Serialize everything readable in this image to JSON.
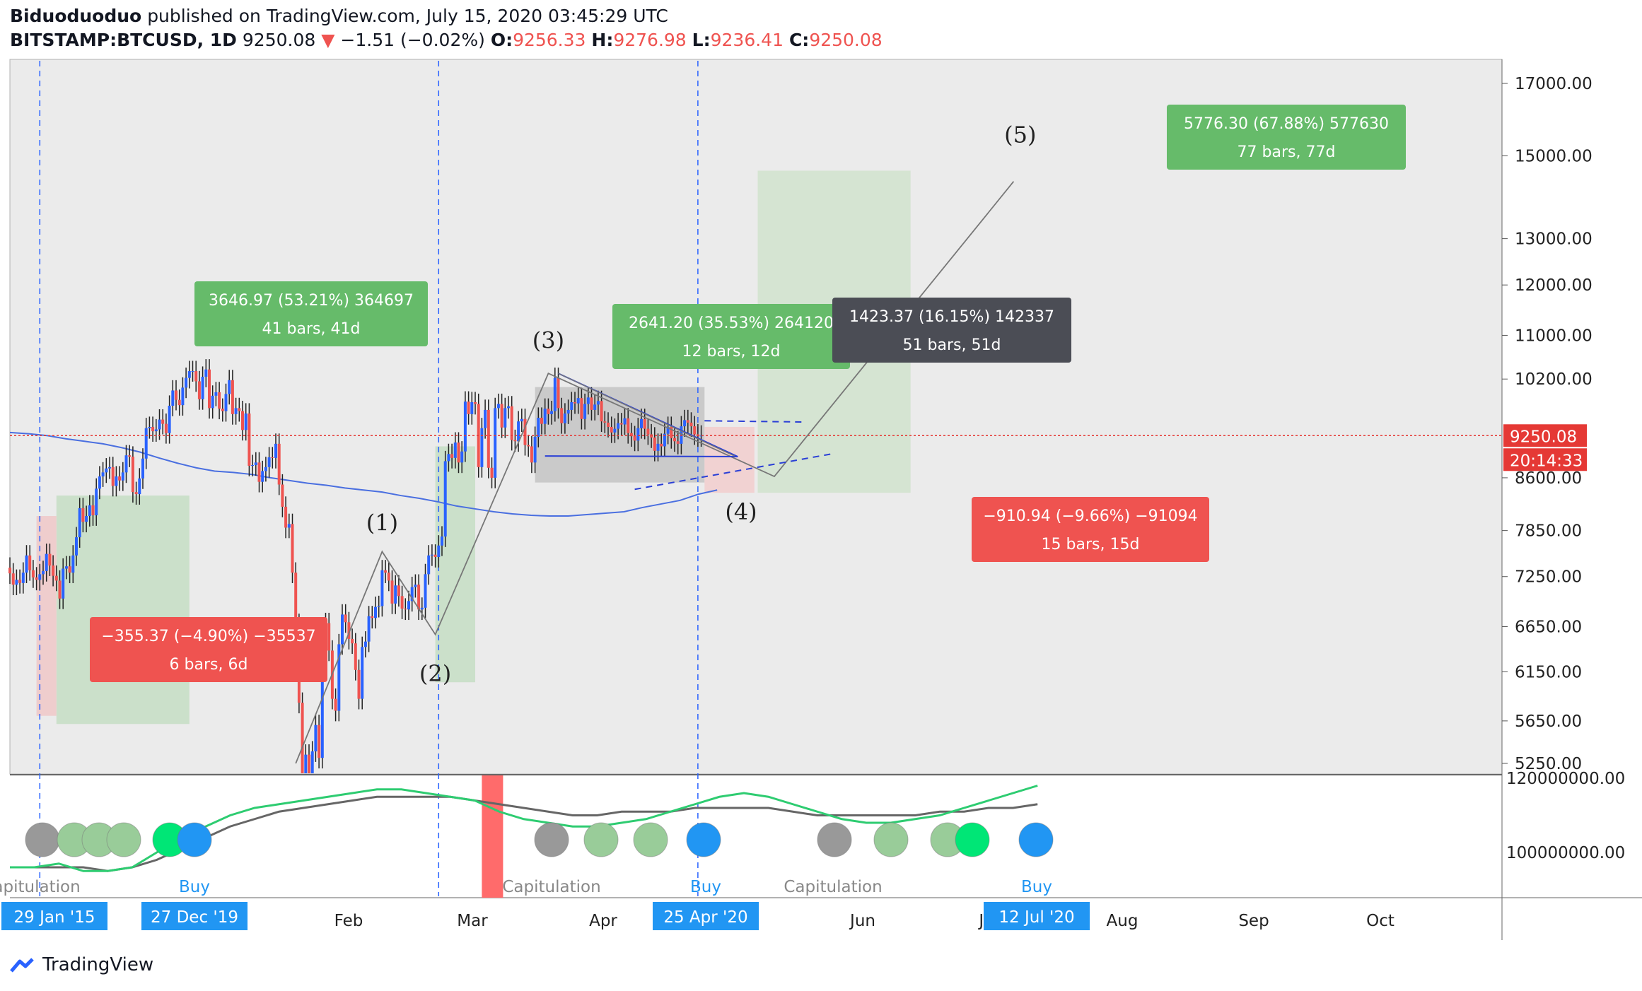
{
  "header": {
    "author": "Biduoduoduo",
    "published_text": "published on TradingView.com, July 15, 2020 03:45:29 UTC",
    "symbol": "BITSTAMP:BTCUSD, 1D",
    "last": "9250.08",
    "arrow": "▼",
    "change": "−1.51 (−0.02%)",
    "o_label": "O:",
    "o": "9256.33",
    "h_label": "H:",
    "h": "9276.98",
    "l_label": "L:",
    "l": "9236.41",
    "c_label": "C:",
    "c": "9250.08"
  },
  "footer": {
    "brand": "TradingView",
    "icon": "tradingview-logo-icon"
  },
  "colors": {
    "up": "#2962ff",
    "down": "#ef5350",
    "bg": "#ebebeb",
    "ma": "#4a6fe0",
    "green_box": "#66bb6a",
    "red_box": "#ef5350",
    "gray_box": "#4b4d55"
  },
  "chart_data": {
    "type": "candlestick",
    "scale": "log",
    "y_ticks": [
      "17000.00",
      "15000.00",
      "13000.00",
      "12000.00",
      "11000.00",
      "10200.00",
      "8600.00",
      "7850.00",
      "7250.00",
      "6650.00",
      "6150.00",
      "5650.00",
      "5250.00"
    ],
    "x_labels": [
      "29 Jan '15",
      "27 Dec '19",
      "Feb",
      "Mar",
      "Apr",
      "25 Apr '20",
      "Jun",
      "Ju",
      "12 Jul '20",
      "Aug",
      "Sep",
      "Oct"
    ],
    "price_label": "9250.08",
    "countdown_label": "20:14:33",
    "series": [
      {
        "start_date": "2019-12-18",
        "closes": [
          7290,
          7150,
          7210,
          7170,
          7300,
          7520,
          7330,
          7240,
          7210,
          7280,
          7320,
          7540,
          7390,
          7260,
          7200,
          6980,
          7350,
          7380,
          7300,
          7520,
          7760,
          8160,
          7970,
          8050,
          8200,
          8060,
          8440,
          8620,
          8680,
          8740,
          8760,
          8480,
          8620,
          8560,
          8680,
          8940,
          8920,
          8390,
          8360,
          8590,
          8890,
          9370,
          9390,
          9320,
          9350,
          9510,
          9440,
          9290,
          9740,
          10000,
          9840,
          9750,
          10050,
          10220,
          10340,
          10340,
          10160,
          9850,
          10240,
          10370,
          9700,
          9910,
          9970,
          9690,
          9650,
          9940,
          10180,
          9600,
          9700,
          9650,
          9340,
          9610,
          8780,
          8790,
          8830,
          8540,
          8700,
          8760,
          8910,
          8900,
          9120,
          8500,
          8180,
          7890,
          7940,
          7300,
          6680,
          5830,
          5010,
          5330,
          5150,
          5360,
          5610,
          5300,
          6160,
          6690,
          6380,
          5870,
          5750,
          6450,
          6790,
          6700,
          6510,
          6460,
          6170,
          5870,
          6420,
          6480,
          6770,
          6750,
          6880,
          6890,
          7330,
          7300,
          7200,
          6920,
          7140,
          7010,
          6860,
          6850,
          6950,
          7120,
          7150,
          6850,
          6870,
          7280,
          7520,
          7530,
          7500,
          7650,
          7770,
          8850,
          8960,
          8900,
          9140,
          8830,
          9000,
          9810,
          9600,
          9800,
          9770,
          8760,
          9370,
          9670,
          8750,
          8600,
          9700,
          9770,
          9380,
          9700,
          9730,
          9180,
          9160,
          9480,
          9520,
          9100,
          9080,
          8830,
          9230,
          9540,
          9440,
          9690,
          9600,
          9650,
          10220,
          9700,
          9450,
          9610,
          9670,
          9800,
          9780,
          9870,
          9520,
          9770,
          9880,
          9670,
          9760,
          9820,
          9480,
          9460,
          9390,
          9300,
          9360,
          9450,
          9430,
          9530,
          9290,
          9240,
          9170,
          9370,
          9520,
          9360,
          9270,
          9220,
          9010,
          9120,
          9080,
          9280,
          9390,
          9210,
          9160,
          9120,
          9400,
          9500,
          9460,
          9400,
          9270,
          9240,
          9250
        ]
      },
      {
        "name": "MA",
        "values": [
          9300,
          9280,
          9250,
          9200,
          9160,
          9120,
          9060,
          8990,
          8900,
          8820,
          8750,
          8700,
          8680,
          8650,
          8600,
          8560,
          8520,
          8490,
          8450,
          8420,
          8390,
          8340,
          8300,
          8250,
          8190,
          8150,
          8110,
          8080,
          8060,
          8050,
          8050,
          8070,
          8090,
          8110,
          8170,
          8220,
          8270,
          8360,
          8420
        ]
      }
    ],
    "annotations": [
      {
        "id": "m1",
        "l1": "3646.97 (53.21%) 364697",
        "l2": "41 bars, 41d"
      },
      {
        "id": "m2",
        "l1": "−355.37 (−4.90%) −35537",
        "l2": "6 bars, 6d"
      },
      {
        "id": "m3",
        "l1": "2641.20 (35.53%) 264120",
        "l2": "12 bars, 12d"
      },
      {
        "id": "m4",
        "l1": "1423.37 (16.15%) 142337",
        "l2": "51 bars, 51d"
      },
      {
        "id": "m5",
        "l1": "−910.94 (−9.66%) −91094",
        "l2": "15 bars, 15d"
      },
      {
        "id": "m6",
        "l1": "5776.30 (67.88%) 577630",
        "l2": "77 bars, 77d"
      }
    ],
    "wave_labels": [
      "(1)",
      "(2)",
      "(3)",
      "(4)",
      "(5)"
    ],
    "indicator": {
      "y_ticks": [
        "120000000.00",
        "100000000.00"
      ],
      "labels": [
        "Capitulation",
        "Buy",
        "Capitulation",
        "Buy",
        "Capitulation",
        "Buy"
      ]
    }
  }
}
